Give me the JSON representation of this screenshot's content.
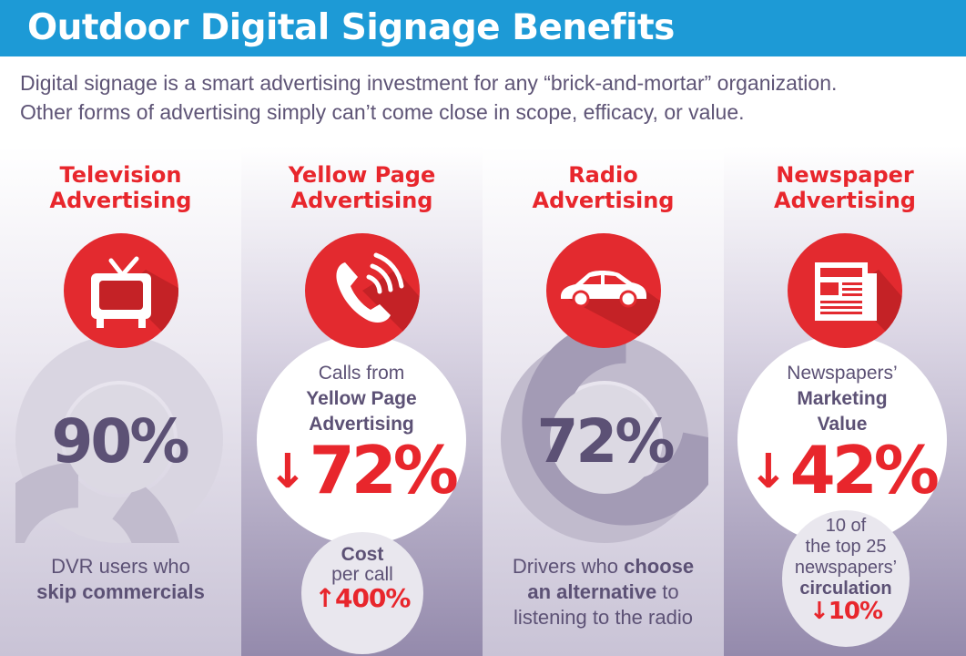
{
  "banner": {
    "title": "Outdoor Digital Signage Benefits"
  },
  "intro": {
    "line1": "Digital signage is a smart advertising investment for any “brick-and-mortar” organization.",
    "line2": "Other forms of advertising simply can’t come close in scope, efficacy, or value."
  },
  "colors": {
    "red": "#e32a2f",
    "blue": "#1d9ad6",
    "purple": "#5c5175"
  },
  "columns": [
    {
      "title1": "Television",
      "title2": "Advertising",
      "icon": "television-icon",
      "percent": "90%",
      "percent_value": 90,
      "caption_line1": "DVR users who",
      "caption_line2": "skip commercials"
    },
    {
      "title1": "Yellow Page",
      "title2": "Advertising",
      "icon": "phone-icon",
      "label_line1": "Calls from",
      "label_line2": "Yellow Page",
      "label_line3": "Advertising",
      "arrow": "↓",
      "percent": "72%",
      "sub_line1": "Cost",
      "sub_line2": "per call",
      "sub_arrow": "↑",
      "sub_value": "400%"
    },
    {
      "title1": "Radio",
      "title2": "Advertising",
      "icon": "car-icon",
      "percent": "72%",
      "percent_value": 72,
      "caption_line1_a": "Drivers who ",
      "caption_line1_b": "choose",
      "caption_line2_a": "an alternative",
      "caption_line2_b": " to",
      "caption_line3": "listening to the radio"
    },
    {
      "title1": "Newspaper",
      "title2": "Advertising",
      "icon": "newspaper-icon",
      "label_line1": "Newspapers’",
      "label_line2": "Marketing",
      "label_line3": "Value",
      "arrow": "↓",
      "percent": "42%",
      "sub_line1": "10 of",
      "sub_line2": "the top 25",
      "sub_line3": "newspapers’",
      "sub_line4": "circulation",
      "sub_arrow": "↓",
      "sub_value": "10%"
    }
  ]
}
